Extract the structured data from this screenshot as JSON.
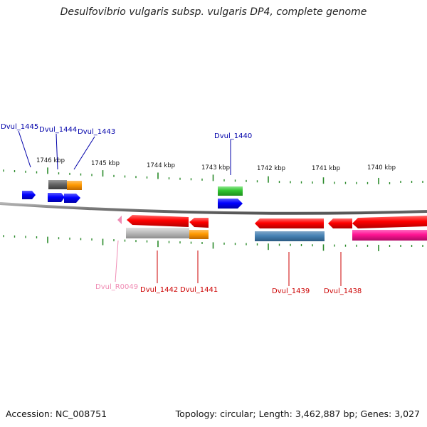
{
  "title": "Desulfovibrio vulgaris subsp. vulgaris DP4, complete genome",
  "footer": {
    "accession": "Accession: NC_008751",
    "topology": "Topology: circular; Length: 3,462,887 bp; Genes: 3,027"
  },
  "colors": {
    "backbone": "#7a7a7a",
    "tick": "#2a8a2a",
    "label_forward": "#0000aa",
    "label_reverse": "#cc0000",
    "label_rna": "#f08cb4"
  },
  "scale_labels": [
    "1746 kbp",
    "1745 kbp",
    "1744 kbp",
    "1743 kbp",
    "1742 kbp",
    "1741 kbp",
    "1740 kbp"
  ],
  "gene_labels": {
    "dvul_1445": "Dvul_1445",
    "dvul_1444": "Dvul_1444",
    "dvul_1443": "Dvul_1443",
    "dvul_1440": "Dvul_1440",
    "dvul_r0049": "Dvul_R0049",
    "dvul_1442": "Dvul_1442",
    "dvul_1441": "Dvul_1441",
    "dvul_1439": "Dvul_1439",
    "dvul_1438": "Dvul_1438"
  }
}
